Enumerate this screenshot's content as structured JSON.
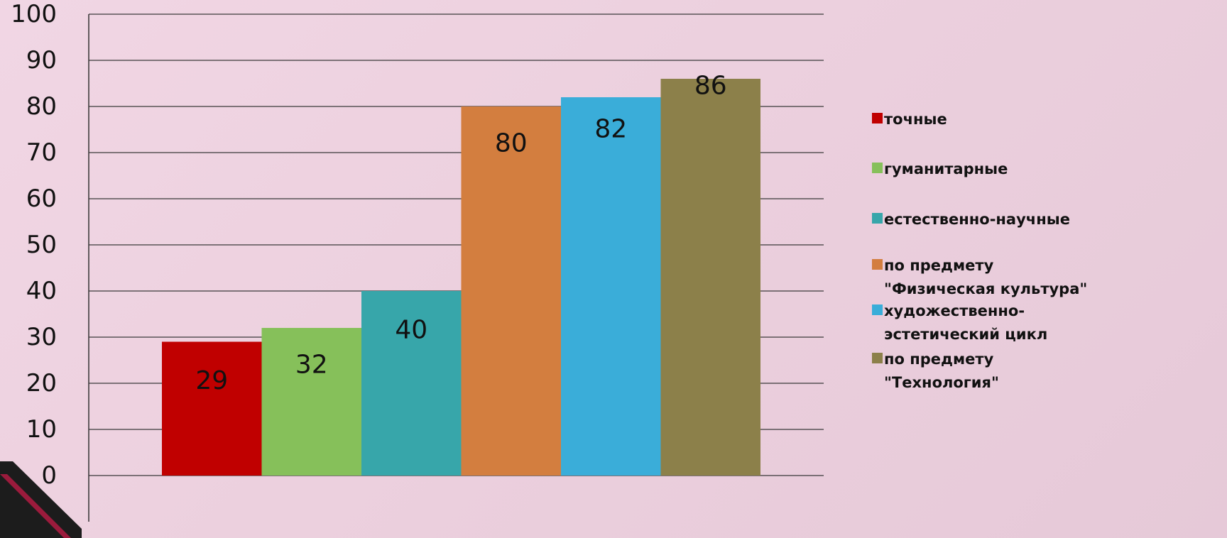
{
  "chart_data": {
    "type": "bar",
    "title": "",
    "xlabel": "",
    "ylabel": "",
    "ylim": [
      0,
      100
    ],
    "y_ticks": [
      "0",
      "10",
      "20",
      "30",
      "40",
      "50",
      "60",
      "70",
      "80",
      "90",
      "100"
    ],
    "grid": true,
    "legend_position": "right",
    "categories": [
      "точные",
      "гуманитарные",
      "естественно-научные",
      "по предмету \"Физическая культура\"",
      "художественно-эстетический цикл",
      "по предмету \"Технология\""
    ],
    "values": [
      29,
      32,
      40,
      80,
      82,
      86
    ],
    "colors": [
      "#c00000",
      "#86c05a",
      "#37a6aa",
      "#d37e3f",
      "#3aadd9",
      "#8c804a"
    ],
    "legend": [
      [
        "точные"
      ],
      [
        "гуманитарные"
      ],
      [
        "естественно-научные"
      ],
      [
        "по предмету",
        "\"Физическая культура\""
      ],
      [
        "художественно-",
        "эстетический цикл"
      ],
      [
        "по предмету",
        "\"Технология\""
      ]
    ]
  }
}
